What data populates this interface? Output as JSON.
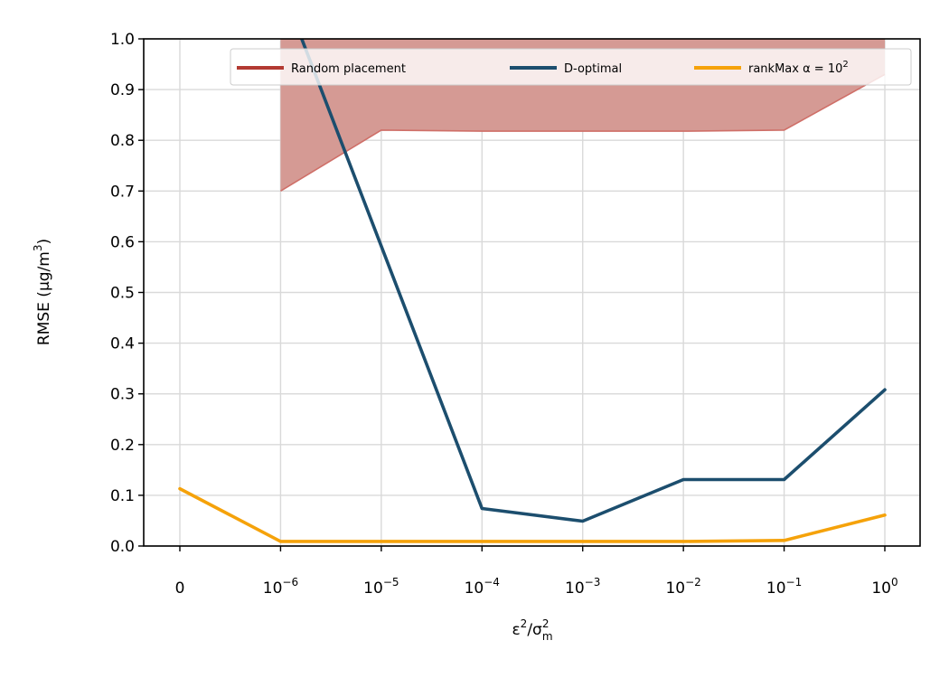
{
  "chart_data": {
    "type": "line",
    "x_categories": [
      "0",
      "10",
      "10",
      "10",
      "10",
      "10",
      "10",
      "10"
    ],
    "x_exponents": [
      "",
      "−6",
      "−5",
      "−4",
      "−3",
      "−2",
      "−1",
      "0"
    ],
    "xlabel": {
      "base": "ε",
      "base_sup": "2",
      "sep": "/σ",
      "sep_sup": "2",
      "sep_sub": "m"
    },
    "ylabel": {
      "pre": "RMSE (μg/m",
      "sup": "3",
      "post": ")"
    },
    "ylim": [
      0,
      1.0
    ],
    "yticks": [
      "0.0",
      "0.1",
      "0.2",
      "0.3",
      "0.4",
      "0.5",
      "0.6",
      "0.7",
      "0.8",
      "0.9",
      "1.0"
    ],
    "grid": true,
    "legend_position": "top-right",
    "series": [
      {
        "name": "Random placement",
        "kind": "band",
        "color": "#b33a32",
        "fill_color": "#d59a94",
        "x_index_start": 1,
        "lower": [
          0.7,
          0.82,
          0.818,
          0.818,
          0.818,
          0.82,
          0.93
        ],
        "upper": [
          1.0,
          1.0,
          1.0,
          1.0,
          1.0,
          1.0,
          1.0
        ]
      },
      {
        "name": "D-optimal",
        "kind": "line",
        "color": "#1c4e6e",
        "x": [
          1.21,
          3,
          4,
          5,
          6,
          7
        ],
        "values": [
          1.0,
          0.074,
          0.049,
          0.131,
          0.131,
          0.308
        ]
      },
      {
        "name": "rankMax α = 10",
        "name_sup": "2",
        "kind": "line",
        "color": "#f5a20a",
        "x": [
          0,
          1,
          2,
          3,
          4,
          5,
          6,
          7
        ],
        "values": [
          0.113,
          0.009,
          0.009,
          0.009,
          0.009,
          0.009,
          0.011,
          0.061
        ]
      }
    ]
  }
}
